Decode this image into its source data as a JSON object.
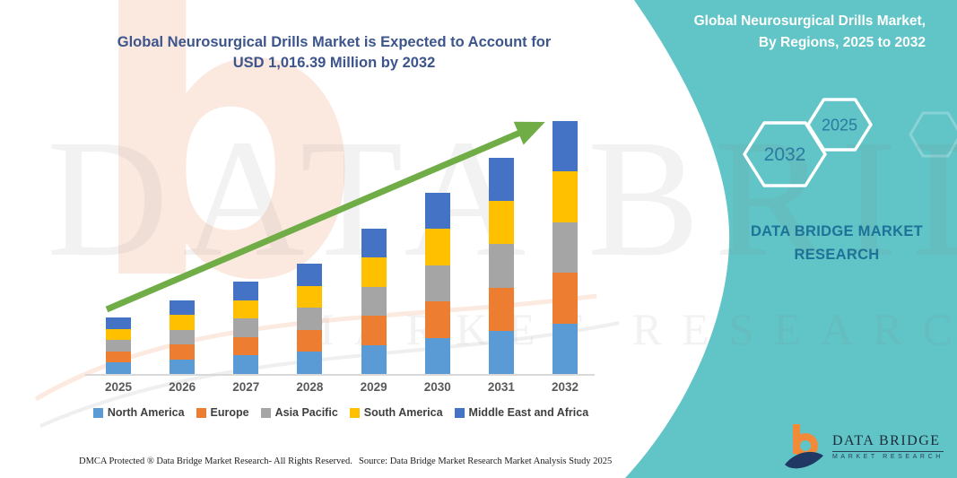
{
  "chart_header": {
    "title_line1": "Global Neurosurgical Drills Market is Expected to Account for",
    "title_line2": "USD 1,016.39 Million by 2032",
    "title_color": "#3C558C"
  },
  "side_panel": {
    "background_color": "#61C4C7",
    "title_line1": "Global Neurosurgical Drills Market,",
    "title_line2": "By Regions, 2025 to 2032",
    "hexagon_back_year": "2032",
    "hexagon_front_year": "2025",
    "hexagon_outline_color": "#FFFFFF",
    "hexagon_year_color": "#2B7BA0",
    "brand_line1": "DATA BRIDGE MARKET",
    "brand_line2": "RESEARCH",
    "brand_text_color": "#1D7298"
  },
  "logo": {
    "name": "DATA BRIDGE",
    "subtitle": "MARKET RESEARCH",
    "b_color": "#F28A38",
    "swoosh_color": "#1F3864"
  },
  "watermark": {
    "brand_initial": "b",
    "line1": "DATA BRIDGE",
    "line2": "MARKET RESEARCH"
  },
  "footer": {
    "left": "DMCA Protected ® Data Bridge Market Research-  All Rights Reserved.",
    "right": "Source: Data Bridge Market Research  Market Analysis Study 2025"
  },
  "chart_data": {
    "type": "bar",
    "stacked": true,
    "title": "Global Neurosurgical Drills Market is Expected to Account for USD 1,016.39 Million by 2032",
    "categories": [
      "2025",
      "2026",
      "2027",
      "2028",
      "2029",
      "2030",
      "2031",
      "2032"
    ],
    "series": [
      {
        "name": "North America",
        "color": "#5B9BD5",
        "values": [
          45.4,
          59.2,
          74.2,
          88.6,
          116.8,
          145.6,
          173.8,
          203.3
        ]
      },
      {
        "name": "Europe",
        "color": "#ED7D31",
        "values": [
          45.4,
          59.2,
          74.2,
          88.6,
          116.8,
          145.6,
          173.8,
          203.3
        ]
      },
      {
        "name": "Asia Pacific",
        "color": "#A5A5A5",
        "values": [
          45.4,
          59.2,
          74.2,
          88.6,
          116.8,
          145.6,
          173.8,
          203.3
        ]
      },
      {
        "name": "South America",
        "color": "#FFC000",
        "values": [
          45.4,
          59.2,
          74.2,
          88.6,
          116.8,
          145.6,
          173.8,
          203.3
        ]
      },
      {
        "name": "Middle East and Africa",
        "color": "#4472C4",
        "values": [
          45.4,
          59.2,
          74.2,
          88.6,
          116.8,
          145.6,
          173.8,
          203.3
        ]
      }
    ],
    "totals_usd_million": [
      227,
      296,
      371,
      443,
      584,
      728,
      869,
      1016.39
    ],
    "values_estimated": true,
    "labeled_value": "USD 1,016.39 Million by 2032",
    "xlabel": "",
    "ylabel": "",
    "ylim": [
      0,
      1050
    ],
    "grid": false,
    "legend_position": "bottom",
    "trend_arrow_color": "#70AD47",
    "axis_line_color": "#D9D9D9"
  }
}
